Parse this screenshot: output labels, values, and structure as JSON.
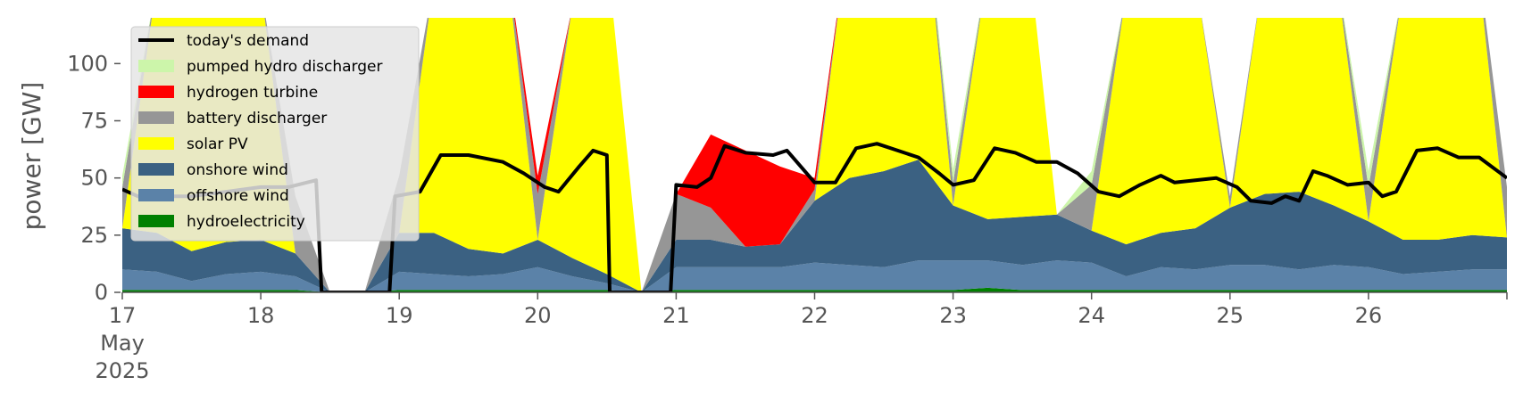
{
  "chart_data": {
    "type": "area",
    "ylabel": "power [GW]",
    "ylim": [
      0,
      120
    ],
    "yticks": [
      0,
      25,
      50,
      75,
      100
    ],
    "xlim": [
      17,
      27
    ],
    "xticks": [
      {
        "x": 17,
        "label": "17",
        "sub1": "May",
        "sub2": "2025"
      },
      {
        "x": 18,
        "label": "18"
      },
      {
        "x": 19,
        "label": "19"
      },
      {
        "x": 20,
        "label": "20"
      },
      {
        "x": 21,
        "label": "21"
      },
      {
        "x": 22,
        "label": "22"
      },
      {
        "x": 23,
        "label": "23"
      },
      {
        "x": 24,
        "label": "24"
      },
      {
        "x": 25,
        "label": "25"
      },
      {
        "x": 26,
        "label": "26"
      }
    ],
    "grid": false,
    "background": "#ffffff",
    "legend_position": "top-left",
    "x": [
      17.0,
      17.25,
      17.5,
      17.75,
      18.0,
      18.25,
      18.5,
      18.75,
      19.0,
      19.25,
      19.5,
      19.75,
      20.0,
      20.25,
      20.5,
      20.75,
      21.0,
      21.25,
      21.5,
      21.75,
      22.0,
      22.25,
      22.5,
      22.75,
      23.0,
      23.25,
      23.5,
      23.75,
      24.0,
      24.25,
      24.5,
      24.75,
      25.0,
      25.25,
      25.5,
      25.75,
      26.0,
      26.25,
      26.5,
      26.75,
      27.0
    ],
    "series": [
      {
        "name": "hydroelectricity",
        "color": "#008000",
        "values": [
          1,
          1,
          1,
          1,
          1,
          1,
          0,
          0,
          1,
          1,
          1,
          1,
          1,
          1,
          1,
          0,
          1,
          1,
          1,
          1,
          1,
          1,
          1,
          1,
          1,
          2,
          1,
          1,
          1,
          1,
          1,
          1,
          1,
          1,
          1,
          1,
          1,
          1,
          1,
          1,
          1
        ]
      },
      {
        "name": "offshore wind",
        "color": "#5b82a8",
        "values": [
          9,
          8,
          4,
          7,
          8,
          6,
          0,
          0,
          8,
          7,
          6,
          7,
          10,
          6,
          3,
          0,
          10,
          10,
          10,
          10,
          12,
          11,
          10,
          13,
          13,
          12,
          11,
          13,
          12,
          6,
          10,
          9,
          11,
          11,
          9,
          11,
          10,
          7,
          8,
          9,
          9
        ]
      },
      {
        "name": "onshore wind",
        "color": "#3b6182",
        "values": [
          18,
          17,
          13,
          14,
          14,
          10,
          0,
          0,
          17,
          18,
          12,
          9,
          12,
          8,
          4,
          0,
          12,
          12,
          9,
          10,
          27,
          38,
          42,
          44,
          24,
          18,
          21,
          20,
          14,
          14,
          15,
          18,
          25,
          31,
          34,
          26,
          20,
          15,
          14,
          15,
          14
        ]
      },
      {
        "name": "solar PV",
        "color": "#ffff00",
        "values": [
          0,
          110,
          140,
          140,
          110,
          0,
          0,
          0,
          0,
          110,
          140,
          140,
          0,
          110,
          140,
          0,
          0,
          0,
          0,
          0,
          0,
          110,
          140,
          140,
          0,
          110,
          140,
          0,
          0,
          110,
          140,
          110,
          0,
          100,
          140,
          110,
          0,
          110,
          140,
          140,
          0
        ]
      },
      {
        "name": "battery discharger",
        "color": "#969696",
        "values": [
          18,
          0,
          0,
          0,
          0,
          25,
          0,
          0,
          25,
          0,
          0,
          0,
          20,
          0,
          0,
          0,
          20,
          14,
          0,
          0,
          5,
          0,
          0,
          0,
          10,
          0,
          0,
          0,
          20,
          0,
          0,
          0,
          5,
          0,
          0,
          0,
          15,
          0,
          0,
          0,
          22
        ]
      },
      {
        "name": "hydrogen turbine",
        "color": "#ff0000",
        "values": [
          0,
          0,
          0,
          0,
          0,
          0,
          0,
          0,
          0,
          0,
          0,
          0,
          8,
          0,
          0,
          0,
          0,
          32,
          42,
          34,
          5,
          0,
          0,
          0,
          0,
          0,
          0,
          0,
          0,
          0,
          0,
          0,
          0,
          0,
          0,
          0,
          0,
          0,
          0,
          0,
          0
        ]
      },
      {
        "name": "pumped hydro discharger",
        "color": "#ccf5aa",
        "values": [
          5,
          0,
          0,
          0,
          0,
          0,
          0,
          0,
          0,
          0,
          0,
          0,
          0,
          0,
          0,
          0,
          0,
          0,
          0,
          0,
          0,
          0,
          0,
          0,
          6,
          0,
          0,
          0,
          6,
          0,
          0,
          0,
          0,
          0,
          0,
          0,
          7,
          0,
          0,
          0,
          0
        ]
      }
    ],
    "demand": {
      "name": "today's demand",
      "color": "#000000",
      "points": [
        [
          17.0,
          45
        ],
        [
          17.15,
          41
        ],
        [
          17.3,
          42
        ],
        [
          17.5,
          42
        ],
        [
          17.75,
          44
        ],
        [
          18.0,
          46
        ],
        [
          18.2,
          46
        ],
        [
          18.4,
          49
        ],
        [
          18.44,
          0
        ],
        [
          18.93,
          0
        ],
        [
          18.97,
          42
        ],
        [
          19.15,
          44
        ],
        [
          19.3,
          60
        ],
        [
          19.5,
          60
        ],
        [
          19.75,
          57
        ],
        [
          19.9,
          52
        ],
        [
          20.05,
          46
        ],
        [
          20.15,
          44
        ],
        [
          20.3,
          55
        ],
        [
          20.4,
          62
        ],
        [
          20.5,
          60
        ],
        [
          20.52,
          0
        ],
        [
          20.96,
          0
        ],
        [
          21.0,
          47
        ],
        [
          21.15,
          46
        ],
        [
          21.25,
          50
        ],
        [
          21.35,
          64
        ],
        [
          21.5,
          61
        ],
        [
          21.7,
          60
        ],
        [
          21.8,
          62
        ],
        [
          22.0,
          48
        ],
        [
          22.15,
          48
        ],
        [
          22.3,
          63
        ],
        [
          22.45,
          65
        ],
        [
          22.6,
          62
        ],
        [
          22.75,
          59
        ],
        [
          22.9,
          52
        ],
        [
          23.0,
          47
        ],
        [
          23.15,
          49
        ],
        [
          23.3,
          63
        ],
        [
          23.45,
          61
        ],
        [
          23.6,
          57
        ],
        [
          23.75,
          57
        ],
        [
          23.9,
          52
        ],
        [
          24.05,
          44
        ],
        [
          24.2,
          42
        ],
        [
          24.35,
          47
        ],
        [
          24.5,
          51
        ],
        [
          24.6,
          48
        ],
        [
          24.75,
          49
        ],
        [
          24.9,
          50
        ],
        [
          25.05,
          46
        ],
        [
          25.15,
          40
        ],
        [
          25.3,
          39
        ],
        [
          25.4,
          42
        ],
        [
          25.5,
          40
        ],
        [
          25.6,
          53
        ],
        [
          25.7,
          51
        ],
        [
          25.85,
          47
        ],
        [
          26.0,
          48
        ],
        [
          26.1,
          42
        ],
        [
          26.2,
          44
        ],
        [
          26.35,
          62
        ],
        [
          26.5,
          63
        ],
        [
          26.65,
          59
        ],
        [
          26.8,
          59
        ],
        [
          27.0,
          50
        ]
      ]
    }
  }
}
